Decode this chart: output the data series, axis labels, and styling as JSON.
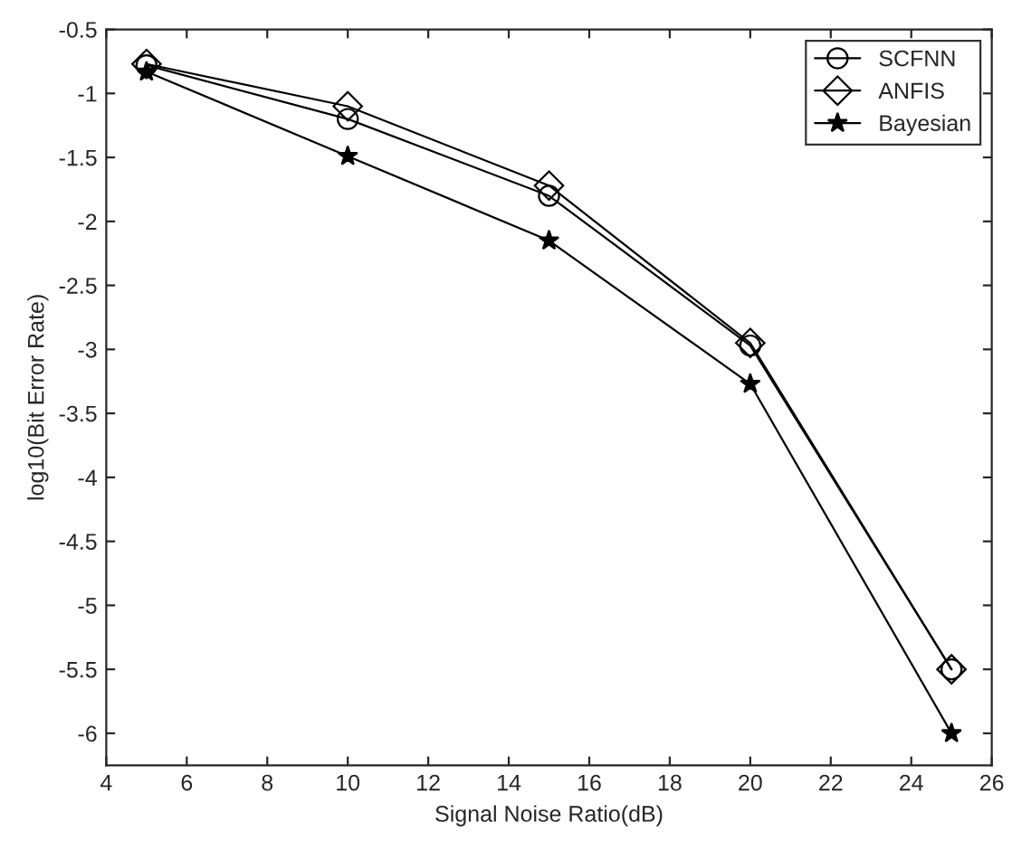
{
  "chart_data": {
    "type": "line",
    "xlabel": "Signal Noise Ratio(dB)",
    "ylabel": "log10(Bit Error Rate)",
    "x": [
      5,
      10,
      15,
      20,
      25
    ],
    "series": [
      {
        "name": "SCFNN",
        "color": "#000000",
        "marker": "circle",
        "values": [
          -0.78,
          -1.2,
          -1.8,
          -2.97,
          -5.5
        ]
      },
      {
        "name": "ANFIS",
        "color": "#000000",
        "marker": "diamond",
        "values": [
          -0.77,
          -1.1,
          -1.72,
          -2.95,
          -5.5
        ]
      },
      {
        "name": "Bayesian",
        "color": "#000000",
        "marker": "star",
        "values": [
          -0.83,
          -1.49,
          -2.15,
          -3.27,
          -6.0
        ]
      }
    ],
    "xlim": [
      4,
      26
    ],
    "xticks": [
      4,
      6,
      8,
      10,
      12,
      14,
      16,
      18,
      20,
      22,
      24,
      26
    ],
    "ylim": [
      -6.25,
      -0.5
    ],
    "yticks": [
      -6,
      -5.5,
      -5,
      -4.5,
      -4,
      -3.5,
      -3,
      -2.5,
      -2,
      -1.5,
      -1,
      -0.5
    ],
    "grid": false,
    "legend": "top right",
    "line_style": "solid"
  }
}
